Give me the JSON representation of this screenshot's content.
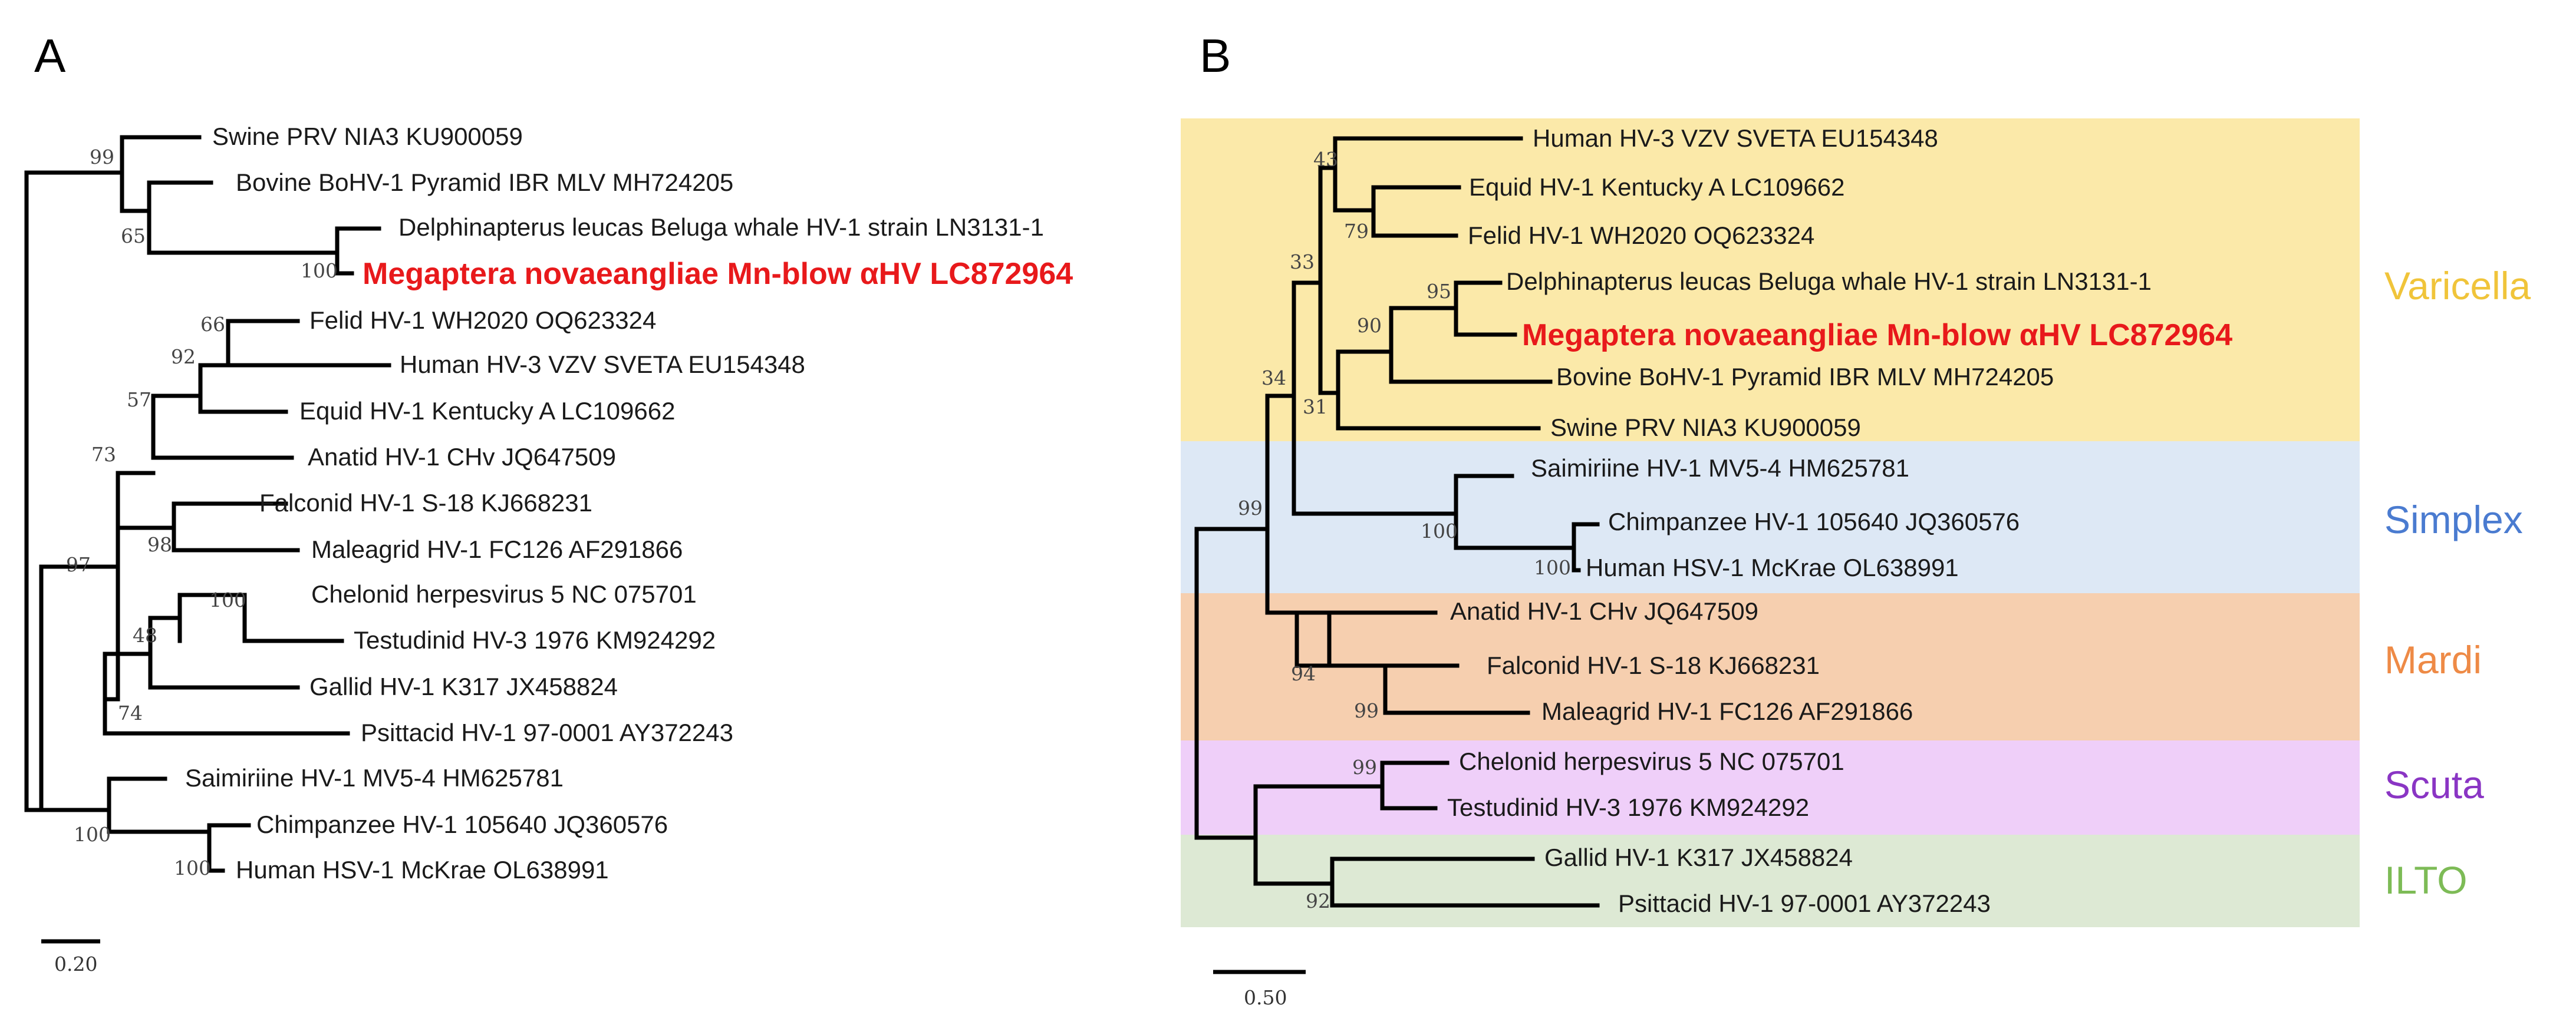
{
  "panels": {
    "a_label": "A",
    "b_label": "B"
  },
  "colors": {
    "highlight": "#e8191b",
    "varicella_bg": "#fbe9a9",
    "varicella_text": "#f0c43a",
    "simplex_bg": "#dde8f5",
    "simplex_text": "#4a7bd0",
    "mardi_bg": "#f6cfaf",
    "mardi_text": "#ee8a46",
    "scuta_bg": "#efcff9",
    "scuta_text": "#8a35c4",
    "ilto_bg": "#dde9d4",
    "ilto_text": "#7dbb56"
  },
  "tree_a": {
    "scale_label": "0.20",
    "tips": [
      {
        "label": "Swine PRV NIA3 KU900059",
        "highlight": false
      },
      {
        "label": "Bovine BoHV-1 Pyramid IBR MLV MH724205",
        "highlight": false
      },
      {
        "label": "Delphinapterus leucas Beluga whale HV-1 strain LN3131-1",
        "highlight": false
      },
      {
        "label": "Megaptera novaeangliae Mn-blow αHV LC872964",
        "highlight": true
      },
      {
        "label": "Felid HV-1 WH2020 OQ623324",
        "highlight": false
      },
      {
        "label": "Human HV-3 VZV SVETA EU154348",
        "highlight": false
      },
      {
        "label": "Equid HV-1 Kentucky A LC109662",
        "highlight": false
      },
      {
        "label": "Anatid HV-1 CHv JQ647509",
        "highlight": false
      },
      {
        "label": "Falconid HV-1 S-18 KJ668231",
        "highlight": false
      },
      {
        "label": "Maleagrid HV-1 FC126 AF291866",
        "highlight": false
      },
      {
        "label": "Chelonid herpesvirus 5 NC 075701",
        "highlight": false
      },
      {
        "label": "Testudinid HV-3 1976 KM924292",
        "highlight": false
      },
      {
        "label": "Gallid HV-1 K317 JX458824",
        "highlight": false
      },
      {
        "label": "Psittacid HV-1 97-0001 AY372243",
        "highlight": false
      },
      {
        "label": "Saimiriine HV-1 MV5-4 HM625781",
        "highlight": false
      },
      {
        "label": "Chimpanzee HV-1 105640 JQ360576",
        "highlight": false
      },
      {
        "label": "Human HSV-1 McKrae OL638991",
        "highlight": false
      }
    ],
    "bootstraps": [
      "99",
      "65",
      "100",
      "66",
      "92",
      "57",
      "73",
      "98",
      "97",
      "100",
      "48",
      "74",
      "100",
      "100"
    ]
  },
  "tree_b": {
    "scale_label": "0.50",
    "tips": [
      {
        "label": "Human HV-3 VZV SVETA EU154348",
        "highlight": false
      },
      {
        "label": "Equid HV-1 Kentucky A LC109662",
        "highlight": false
      },
      {
        "label": "Felid HV-1 WH2020 OQ623324",
        "highlight": false
      },
      {
        "label": "Delphinapterus leucas Beluga whale HV-1 strain LN3131-1",
        "highlight": false
      },
      {
        "label": "Megaptera novaeangliae Mn-blow αHV LC872964",
        "highlight": true
      },
      {
        "label": "Bovine BoHV-1 Pyramid IBR MLV MH724205",
        "highlight": false
      },
      {
        "label": "Swine PRV NIA3 KU900059",
        "highlight": false
      },
      {
        "label": "Saimiriine HV-1 MV5-4 HM625781",
        "highlight": false
      },
      {
        "label": "Chimpanzee HV-1 105640 JQ360576",
        "highlight": false
      },
      {
        "label": "Human HSV-1 McKrae OL638991",
        "highlight": false
      },
      {
        "label": "Anatid HV-1 CHv JQ647509",
        "highlight": false
      },
      {
        "label": "Falconid HV-1 S-18 KJ668231",
        "highlight": false
      },
      {
        "label": "Maleagrid HV-1 FC126 AF291866",
        "highlight": false
      },
      {
        "label": "Chelonid herpesvirus 5 NC 075701",
        "highlight": false
      },
      {
        "label": "Testudinid HV-3 1976 KM924292",
        "highlight": false
      },
      {
        "label": "Gallid HV-1 K317 JX458824",
        "highlight": false
      },
      {
        "label": "Psittacid HV-1 97-0001 AY372243",
        "highlight": false
      }
    ],
    "bootstraps": [
      "43",
      "79",
      "33",
      "95",
      "90",
      "31",
      "34",
      "100",
      "100",
      "99",
      "94",
      "99",
      "99",
      "92"
    ],
    "clades": [
      {
        "name": "Varicella"
      },
      {
        "name": "Simplex"
      },
      {
        "name": "Mardi"
      },
      {
        "name": "Scuta"
      },
      {
        "name": "ILTO"
      }
    ]
  }
}
